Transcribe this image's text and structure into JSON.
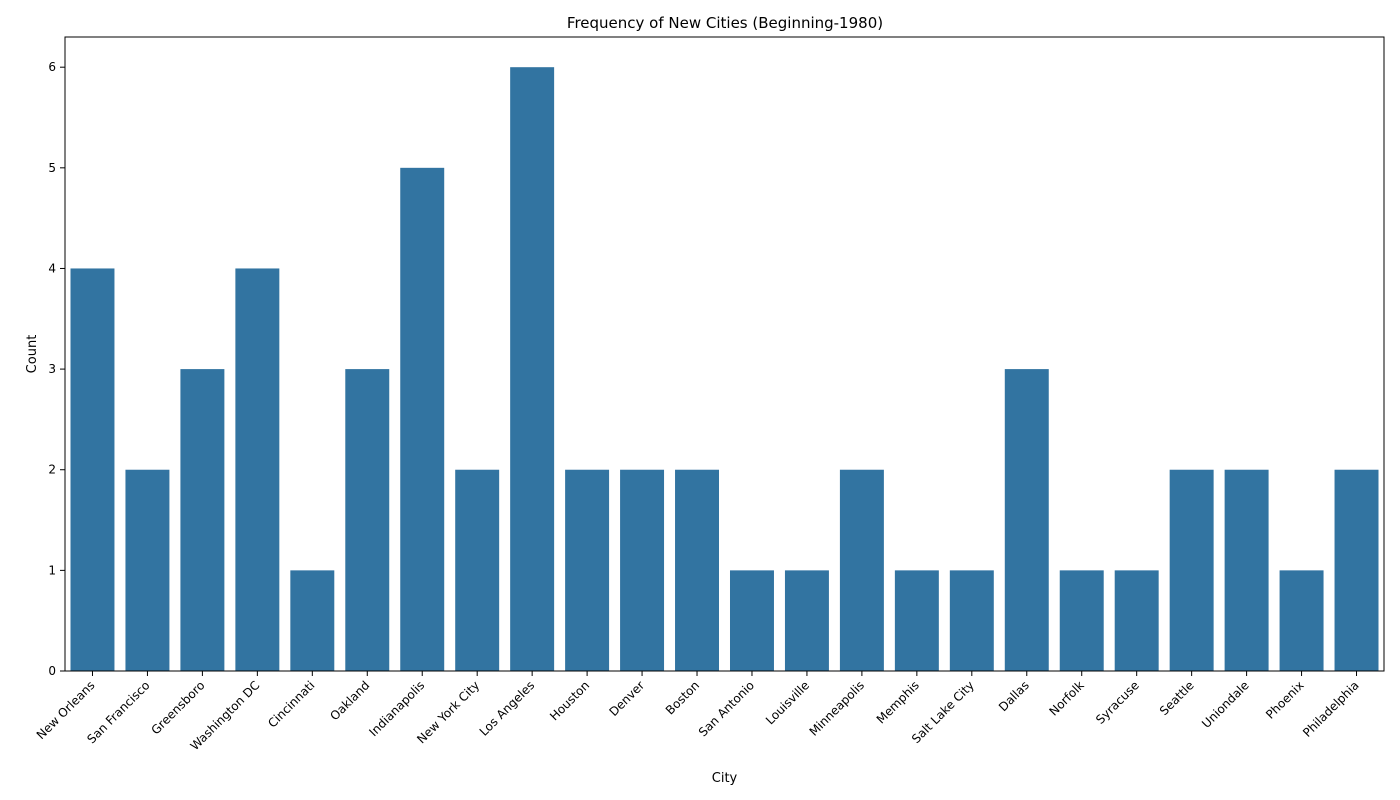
{
  "chart_data": {
    "type": "bar",
    "title": "Frequency of New Cities (Beginning-1980)",
    "xlabel": "City",
    "ylabel": "Count",
    "ylim": [
      0,
      6.3
    ],
    "yticks": [
      0,
      1,
      2,
      3,
      4,
      5,
      6
    ],
    "grid": false,
    "bar_color": "#3274a1",
    "categories": [
      "New Orleans",
      "San Francisco",
      "Greensboro",
      "Washington DC",
      "Cincinnati",
      "Oakland",
      "Indianapolis",
      "New York City",
      "Los Angeles",
      "Houston",
      "Denver",
      "Boston",
      "San Antonio",
      "Louisville",
      "Minneapolis",
      "Memphis",
      "Salt Lake City",
      "Dallas",
      "Norfolk",
      "Syracuse",
      "Seattle",
      "Uniondale",
      "Phoenix",
      "Philadelphia"
    ],
    "values": [
      4,
      2,
      3,
      4,
      1,
      3,
      5,
      2,
      6,
      2,
      2,
      2,
      1,
      1,
      2,
      1,
      1,
      3,
      1,
      1,
      2,
      2,
      1,
      2
    ]
  }
}
